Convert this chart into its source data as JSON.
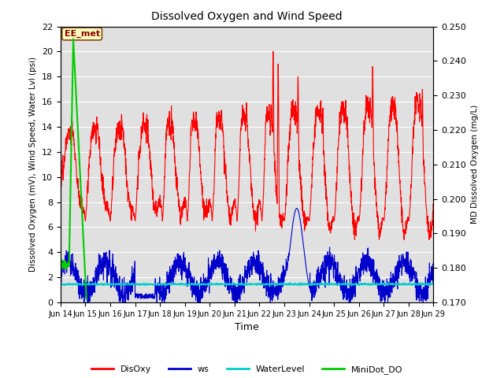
{
  "title": "Dissolved Oxygen and Wind Speed",
  "xlabel": "Time",
  "ylabel_left": "Dissolved Oxygen (mV), Wind Speed, Water Lvl (psi)",
  "ylabel_right": "MD Dissolved Oxygen (mg/L)",
  "ylim_left": [
    0,
    22
  ],
  "ylim_right": [
    0.17,
    0.25
  ],
  "yticks_left": [
    0,
    2,
    4,
    6,
    8,
    10,
    12,
    14,
    16,
    18,
    20,
    22
  ],
  "yticks_right": [
    0.17,
    0.18,
    0.19,
    0.2,
    0.21,
    0.22,
    0.23,
    0.24,
    0.25
  ],
  "xtick_positions": [
    0,
    1,
    2,
    3,
    4,
    5,
    6,
    7,
    8,
    9,
    10,
    11,
    12,
    13,
    14,
    15
  ],
  "xtick_labels": [
    "Jun 14",
    "Jun 15",
    "Jun 16",
    "Jun 17",
    "Jun 18",
    "Jun 19",
    "Jun 20",
    "Jun 21",
    "Jun 22",
    "Jun 23",
    "Jun 24",
    "Jun 25",
    "Jun 26",
    "Jun 27",
    "Jun 28",
    "Jun 29"
  ],
  "annotation_text": "EE_met",
  "colors": {
    "DisOxy": "#ff0000",
    "ws": "#0000cc",
    "WaterLevel": "#00cccc",
    "MiniDot_DO": "#00cc00",
    "background": "#e0e0e0",
    "grid": "#ffffff"
  },
  "line_widths": {
    "DisOxy": 0.8,
    "ws": 0.8,
    "WaterLevel": 1.2,
    "MiniDot_DO": 1.5
  }
}
